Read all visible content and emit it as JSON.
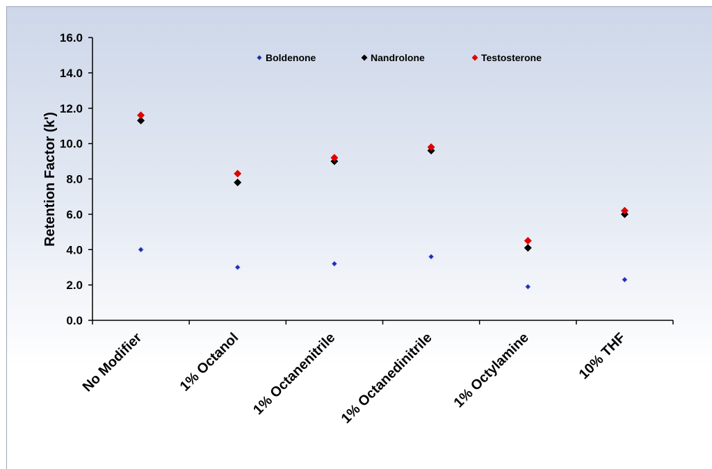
{
  "chart_data": {
    "type": "scatter",
    "title": "",
    "xlabel": "",
    "ylabel": "Retention Factor (k')",
    "ylim": [
      0,
      16
    ],
    "yticks": [
      "0.0",
      "2.0",
      "4.0",
      "6.0",
      "8.0",
      "10.0",
      "12.0",
      "14.0",
      "16.0"
    ],
    "categories": [
      "No Modifier",
      "1% Octanol",
      "1% Octanenitrile",
      "1% Octanedinitrile",
      "1% Octylamine",
      "10% THF"
    ],
    "grid": false,
    "legend_position": "top",
    "series": [
      {
        "name": "Boldenone",
        "color": "#1f2fa8",
        "marker": "small-diamond",
        "values": [
          4.0,
          3.0,
          3.2,
          3.6,
          1.9,
          2.3
        ]
      },
      {
        "name": "Nandrolone",
        "color": "#000000",
        "marker": "diamond",
        "values": [
          11.3,
          7.8,
          9.0,
          9.6,
          4.1,
          6.0
        ]
      },
      {
        "name": "Testosterone",
        "color": "#e00000",
        "marker": "diamond",
        "values": [
          11.6,
          8.3,
          9.2,
          9.8,
          4.5,
          6.2
        ]
      }
    ]
  }
}
